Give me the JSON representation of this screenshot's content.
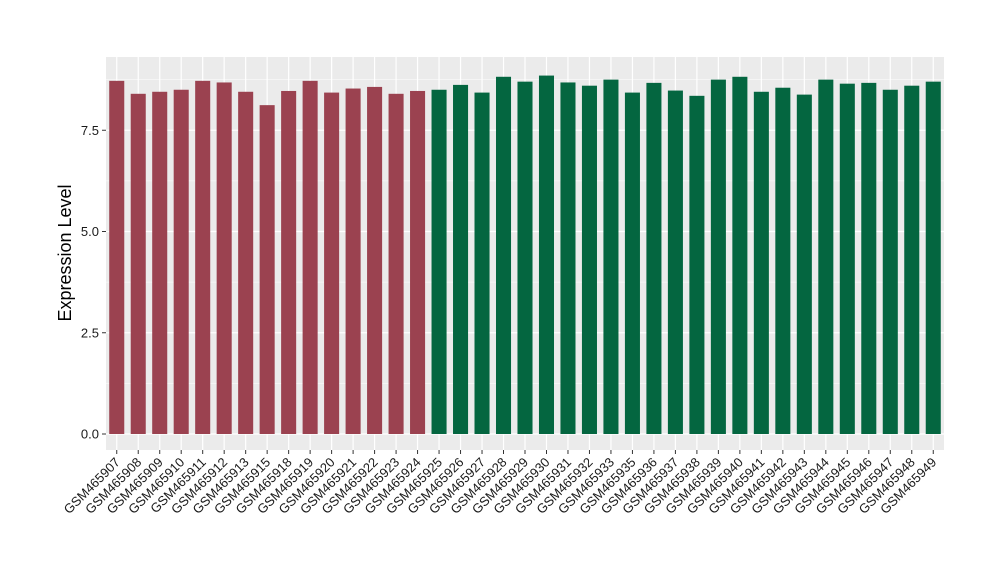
{
  "chart_data": {
    "type": "bar",
    "title": "",
    "xlabel": "",
    "ylabel": "Expression Level",
    "ylim": [
      0,
      9.0
    ],
    "yticks": [
      0.0,
      2.5,
      5.0,
      7.5
    ],
    "ytick_labels": [
      "0.0",
      "2.5",
      "5.0",
      "7.5"
    ],
    "grid": true,
    "legend": "none",
    "colors": {
      "group1": "#9b4250",
      "group2": "#046640",
      "panel": "#ebebeb",
      "grid": "#ffffff"
    },
    "categories": [
      "GSM465907",
      "GSM465908",
      "GSM465909",
      "GSM465910",
      "GSM465911",
      "GSM465912",
      "GSM465913",
      "GSM465915",
      "GSM465918",
      "GSM465919",
      "GSM465920",
      "GSM465921",
      "GSM465922",
      "GSM465923",
      "GSM465924",
      "GSM465925",
      "GSM465926",
      "GSM465927",
      "GSM465928",
      "GSM465929",
      "GSM465930",
      "GSM465931",
      "GSM465932",
      "GSM465933",
      "GSM465935",
      "GSM465936",
      "GSM465937",
      "GSM465938",
      "GSM465939",
      "GSM465940",
      "GSM465941",
      "GSM465942",
      "GSM465943",
      "GSM465944",
      "GSM465945",
      "GSM465946",
      "GSM465947",
      "GSM465948",
      "GSM465949"
    ],
    "values": [
      8.72,
      8.4,
      8.45,
      8.5,
      8.72,
      8.68,
      8.45,
      8.12,
      8.47,
      8.72,
      8.43,
      8.53,
      8.57,
      8.4,
      8.47,
      8.5,
      8.62,
      8.43,
      8.82,
      8.7,
      8.85,
      8.68,
      8.6,
      8.75,
      8.43,
      8.67,
      8.48,
      8.35,
      8.75,
      8.82,
      8.45,
      8.55,
      8.38,
      8.75,
      8.65,
      8.67,
      8.5,
      8.6,
      8.7
    ],
    "group": [
      1,
      1,
      1,
      1,
      1,
      1,
      1,
      1,
      1,
      1,
      1,
      1,
      1,
      1,
      1,
      2,
      2,
      2,
      2,
      2,
      2,
      2,
      2,
      2,
      2,
      2,
      2,
      2,
      2,
      2,
      2,
      2,
      2,
      2,
      2,
      2,
      2,
      2,
      2
    ]
  }
}
